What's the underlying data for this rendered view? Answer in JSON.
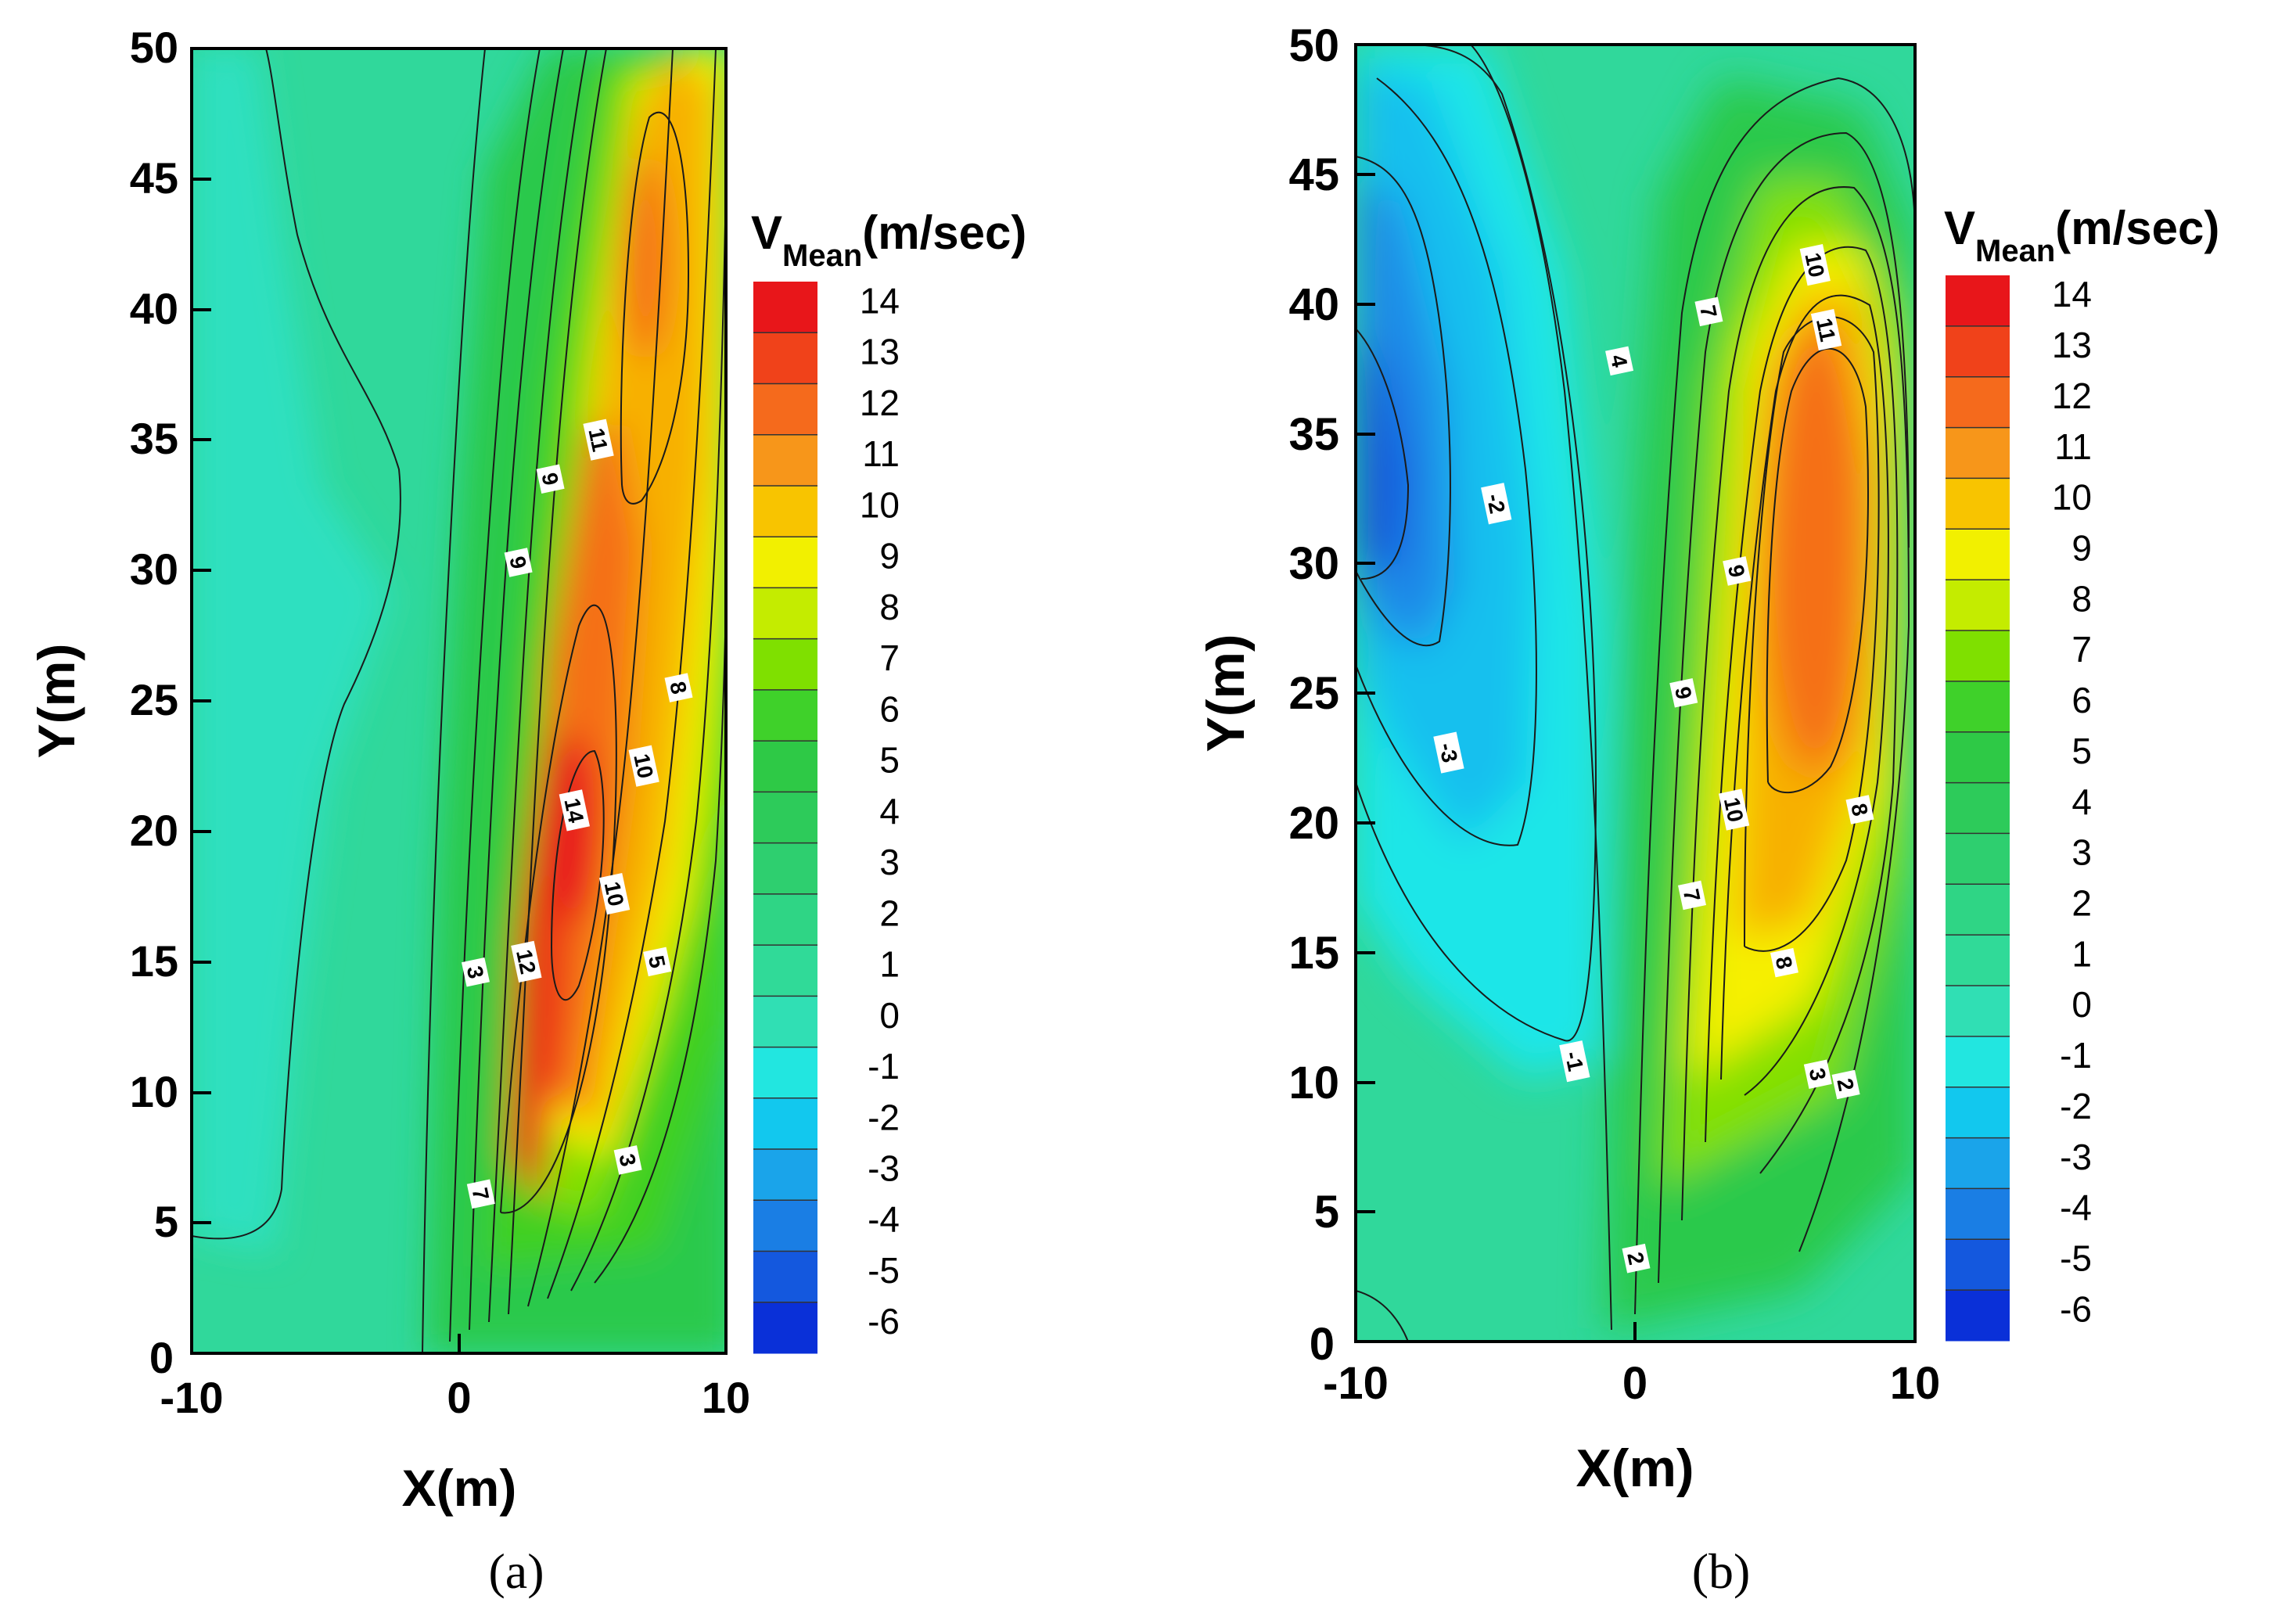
{
  "chart_data": [
    {
      "type": "heatmap",
      "subplot": "a",
      "caption": "(a)",
      "xlabel": "X(m)",
      "ylabel": "Y(m)",
      "xlim": [
        -10,
        10
      ],
      "ylim": [
        0,
        50
      ],
      "xticks": [
        "-10",
        "0",
        "10"
      ],
      "yticks": [
        "0",
        "5",
        "10",
        "15",
        "20",
        "25",
        "30",
        "35",
        "40",
        "45",
        "50"
      ],
      "colorbar": {
        "title_main": "V",
        "title_sub": "Mean",
        "title_unit": "(m/sec)",
        "levels": [
          "14",
          "13",
          "12",
          "11",
          "10",
          "9",
          "8",
          "7",
          "6",
          "5",
          "4",
          "3",
          "2",
          "1",
          "0",
          "-1",
          "-2",
          "-3",
          "-4",
          "-5",
          "-6"
        ]
      },
      "contour_labels": [
        {
          "text": "11",
          "x": 5.2,
          "y": 35.0
        },
        {
          "text": "9",
          "x": 3.4,
          "y": 33.5
        },
        {
          "text": "9",
          "x": 2.2,
          "y": 30.3
        },
        {
          "text": "8",
          "x": 8.2,
          "y": 25.5
        },
        {
          "text": "10",
          "x": 6.9,
          "y": 22.5
        },
        {
          "text": "14",
          "x": 4.3,
          "y": 20.8
        },
        {
          "text": "10",
          "x": 5.8,
          "y": 17.6
        },
        {
          "text": "12",
          "x": 2.5,
          "y": 15.0
        },
        {
          "text": "5",
          "x": 7.4,
          "y": 15.0
        },
        {
          "text": "3",
          "x": 0.6,
          "y": 14.6
        },
        {
          "text": "3",
          "x": 6.3,
          "y": 7.4
        },
        {
          "text": "7",
          "x": 0.8,
          "y": 6.1
        }
      ],
      "colors": {
        "max": "#e8161a",
        "min": "#0a1edc"
      }
    },
    {
      "type": "heatmap",
      "subplot": "b",
      "caption": "(b)",
      "xlabel": "X(m)",
      "ylabel": "Y(m)",
      "xlim": [
        -10,
        10
      ],
      "ylim": [
        0,
        50
      ],
      "xticks": [
        "-10",
        "0",
        "10"
      ],
      "yticks": [
        "0",
        "5",
        "10",
        "15",
        "20",
        "25",
        "30",
        "35",
        "40",
        "45",
        "50"
      ],
      "colorbar": {
        "title_main": "V",
        "title_sub": "Mean",
        "title_unit": "(m/sec)",
        "levels": [
          "14",
          "13",
          "12",
          "11",
          "10",
          "9",
          "8",
          "7",
          "6",
          "5",
          "4",
          "3",
          "2",
          "1",
          "0",
          "-1",
          "-2",
          "-3",
          "-4",
          "-5",
          "-6"
        ]
      },
      "contour_labels": [
        {
          "text": "10",
          "x": 6.4,
          "y": 41.5
        },
        {
          "text": "11",
          "x": 6.8,
          "y": 39.0
        },
        {
          "text": "7",
          "x": 2.6,
          "y": 39.7
        },
        {
          "text": "4",
          "x": -0.6,
          "y": 37.8
        },
        {
          "text": "-2",
          "x": -5.0,
          "y": 32.3
        },
        {
          "text": "9",
          "x": 3.6,
          "y": 29.7
        },
        {
          "text": "9",
          "x": 1.7,
          "y": 25.0
        },
        {
          "text": "-3",
          "x": -6.7,
          "y": 22.7
        },
        {
          "text": "10",
          "x": 3.5,
          "y": 20.5
        },
        {
          "text": "8",
          "x": 8.0,
          "y": 20.5
        },
        {
          "text": "7",
          "x": 2.0,
          "y": 17.2
        },
        {
          "text": "8",
          "x": 5.3,
          "y": 14.6
        },
        {
          "text": "-1",
          "x": -2.2,
          "y": 10.8
        },
        {
          "text": "3",
          "x": 6.5,
          "y": 10.3
        },
        {
          "text": "2",
          "x": 7.5,
          "y": 9.9
        },
        {
          "text": "2",
          "x": 0.0,
          "y": 3.2
        }
      ],
      "colors": {
        "max": "#e8161a",
        "min": "#0a1edc"
      }
    }
  ]
}
